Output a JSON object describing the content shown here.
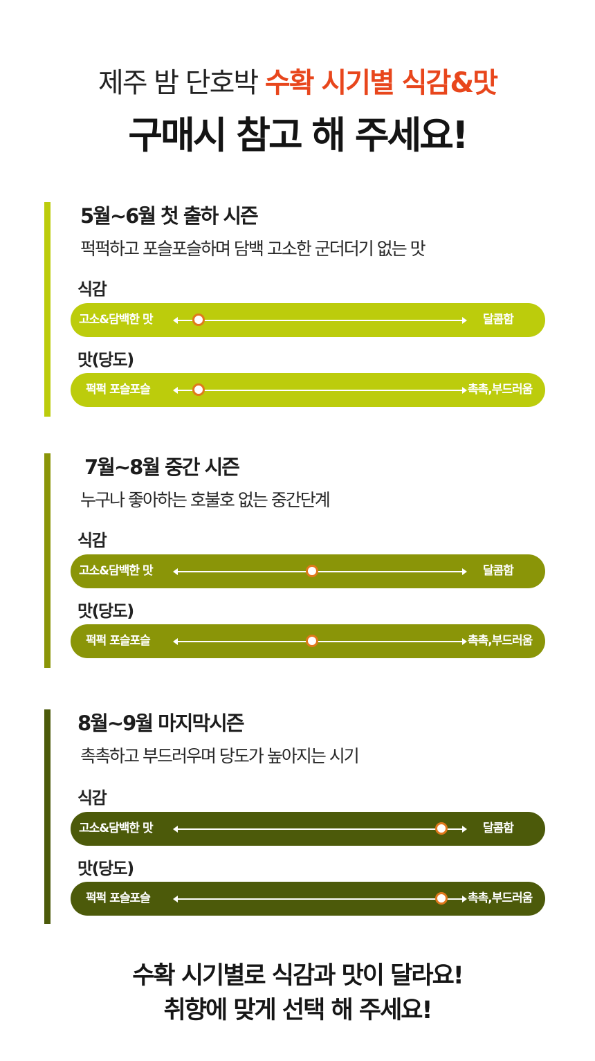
{
  "header": {
    "line1_prefix": "제주 밤 단호박 ",
    "line1_accent": "수확 시기별 식감&맛",
    "line2": "구매시 참고 해 주세요!"
  },
  "colors": {
    "accent": "#e8461c",
    "season1": "#bccc0c",
    "season2": "#8a9508",
    "season3": "#4c5a0a",
    "knob_ring": "#e0781c"
  },
  "seasons": [
    {
      "title": "5월~6월 첫 출하 시즌",
      "description": "퍽퍽하고 포슬포슬하며 담백 고소한 군더더기 없는 맛",
      "rows": [
        {
          "label": "식감",
          "left": "고소&담백한 맛",
          "right": "달콤함",
          "level": 0.08
        },
        {
          "label": "맛(당도)",
          "left": "퍽퍽 포슬포슬",
          "right": "촉촉,부드러움",
          "level": 0.08
        }
      ]
    },
    {
      "title": "7월~8월 중간 시즌",
      "description": "누구나 좋아하는 호불호 없는 중간단계",
      "rows": [
        {
          "label": "식감",
          "left": "고소&담백한 맛",
          "right": "달콤함",
          "level": 0.47
        },
        {
          "label": "맛(당도)",
          "left": "퍽퍽 포슬포슬",
          "right": "촉촉,부드러움",
          "level": 0.47
        }
      ]
    },
    {
      "title": "8월~9월 마지막시즌",
      "description": "촉촉하고 부드러우며 당도가 높아지는 시기",
      "rows": [
        {
          "label": "식감",
          "left": "고소&담백한 맛",
          "right": "달콤함",
          "level": 0.92
        },
        {
          "label": "맛(당도)",
          "left": "퍽퍽 포슬포슬",
          "right": "촉촉,부드러움",
          "level": 0.92
        }
      ]
    }
  ],
  "footer": {
    "line1": "수확 시기별로 식감과 맛이 달라요!",
    "line2": "취향에 맞게 선택 해 주세요!"
  }
}
